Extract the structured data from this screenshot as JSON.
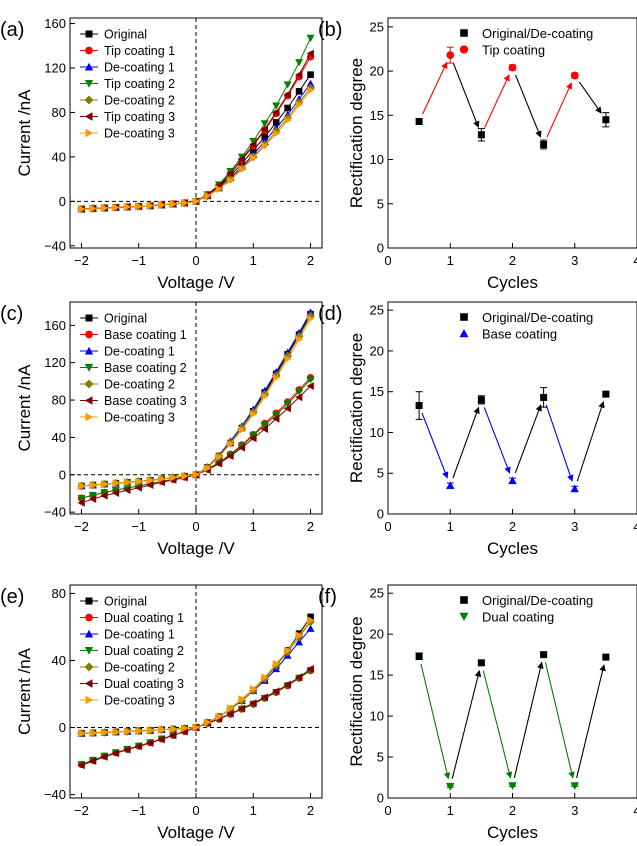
{
  "chart_data": [
    {
      "panel": "(a)",
      "type": "line",
      "xlabel": "Voltage /V",
      "ylabel": "Current /nA",
      "xlim": [
        -2.2,
        2.2
      ],
      "ylim": [
        -42,
        165
      ],
      "xticks": [
        -2,
        -1,
        0,
        1,
        2
      ],
      "yticks": [
        -40,
        0,
        40,
        80,
        120,
        160
      ],
      "x": [
        -2.0,
        -1.8,
        -1.6,
        -1.4,
        -1.2,
        -1.0,
        -0.8,
        -0.6,
        -0.4,
        -0.2,
        0.0,
        0.2,
        0.4,
        0.6,
        0.8,
        1.0,
        1.2,
        1.4,
        1.6,
        1.8,
        2.0
      ],
      "legend_position": "top-left",
      "series": [
        {
          "name": "Original",
          "color": "#000000",
          "marker": "square",
          "values": [
            -7,
            -6.5,
            -6,
            -5.5,
            -5,
            -4.5,
            -4,
            -3.2,
            -2.4,
            -1.4,
            0,
            5,
            13,
            23,
            34,
            46,
            58,
            71,
            84,
            99,
            114
          ]
        },
        {
          "name": "Tip coating 1",
          "color": "#ff0000",
          "marker": "circle",
          "values": [
            -7,
            -6.5,
            -6,
            -5.5,
            -5,
            -4.5,
            -4,
            -3.2,
            -2.4,
            -1.4,
            0,
            6,
            14,
            25,
            37,
            50,
            64,
            79,
            95,
            112,
            130
          ]
        },
        {
          "name": "De-coating 1",
          "color": "#0000ff",
          "marker": "triangle-up",
          "values": [
            -7,
            -6.5,
            -6,
            -5.5,
            -5,
            -4.5,
            -4,
            -3.2,
            -2.4,
            -1.4,
            0,
            5,
            12,
            21,
            31,
            42,
            54,
            66,
            78,
            92,
            106
          ]
        },
        {
          "name": "Tip coating 2",
          "color": "#008000",
          "marker": "triangle-down",
          "values": [
            -7,
            -6.5,
            -6,
            -5.5,
            -5,
            -4.5,
            -4,
            -3.2,
            -2.4,
            -1.4,
            0,
            6,
            15,
            27,
            40,
            54,
            70,
            86,
            105,
            125,
            147
          ]
        },
        {
          "name": "De-coating 2",
          "color": "#808000",
          "marker": "diamond",
          "values": [
            -7,
            -6.5,
            -6,
            -5.5,
            -5,
            -4.5,
            -4,
            -3.2,
            -2.4,
            -1.4,
            0,
            5,
            12,
            20,
            30,
            40,
            51,
            63,
            75,
            89,
            102
          ]
        },
        {
          "name": "Tip coating 3",
          "color": "#800000",
          "marker": "triangle-left",
          "values": [
            -7,
            -6.5,
            -6,
            -5.5,
            -5,
            -4.5,
            -4,
            -3.2,
            -2.4,
            -1.4,
            0,
            6,
            14,
            25,
            38,
            51,
            65,
            80,
            96,
            114,
            133
          ]
        },
        {
          "name": "De-coating 3",
          "color": "#ff9900",
          "marker": "triangle-right",
          "values": [
            -7,
            -6.5,
            -6,
            -5.5,
            -5,
            -4.5,
            -4,
            -3.2,
            -2.4,
            -1.4,
            0,
            5,
            11,
            19,
            29,
            39,
            50,
            61,
            73,
            87,
            100
          ]
        }
      ]
    },
    {
      "panel": "(b)",
      "type": "scatter",
      "xlabel": "Cycles",
      "ylabel": "Rectification degree",
      "xlim": [
        0,
        4
      ],
      "ylim": [
        0,
        26
      ],
      "xticks": [
        0,
        1,
        2,
        3,
        4
      ],
      "yticks": [
        0,
        5,
        10,
        15,
        20,
        25
      ],
      "legend_position": "top-right",
      "series": [
        {
          "name": "Original/De-coating",
          "color": "#000000",
          "marker": "square",
          "x": [
            0.5,
            1.5,
            2.5,
            3.5
          ],
          "values": [
            14.3,
            12.8,
            11.7,
            14.5
          ],
          "errors": [
            0,
            0.7,
            0.5,
            0.8
          ]
        },
        {
          "name": "Tip coating",
          "color": "#ff0000",
          "marker": "circle",
          "x": [
            1,
            2,
            3
          ],
          "values": [
            21.8,
            20.4,
            19.5
          ],
          "errors": [
            0.9,
            0.3,
            0.3
          ]
        }
      ],
      "arrows": [
        {
          "from": [
            0.5,
            14.3
          ],
          "to": [
            1,
            21.8
          ],
          "color": "#ff0000"
        },
        {
          "from": [
            1,
            21.8
          ],
          "to": [
            1.5,
            12.8
          ],
          "color": "#000000"
        },
        {
          "from": [
            1.5,
            12.8
          ],
          "to": [
            2,
            20.4
          ],
          "color": "#ff0000"
        },
        {
          "from": [
            2,
            20.4
          ],
          "to": [
            2.5,
            11.7
          ],
          "color": "#000000"
        },
        {
          "from": [
            2.5,
            11.7
          ],
          "to": [
            3,
            19.5
          ],
          "color": "#ff0000"
        },
        {
          "from": [
            3,
            19.5
          ],
          "to": [
            3.5,
            14.5
          ],
          "color": "#000000"
        }
      ]
    },
    {
      "panel": "(c)",
      "type": "line",
      "xlabel": "Voltage /V",
      "ylabel": "Current /nA",
      "xlim": [
        -2.2,
        2.2
      ],
      "ylim": [
        -42,
        185
      ],
      "xticks": [
        -2,
        -1,
        0,
        1,
        2
      ],
      "yticks": [
        -40,
        0,
        40,
        80,
        120,
        160
      ],
      "x": [
        -2.0,
        -1.8,
        -1.6,
        -1.4,
        -1.2,
        -1.0,
        -0.8,
        -0.6,
        -0.4,
        -0.2,
        0.0,
        0.2,
        0.4,
        0.6,
        0.8,
        1.0,
        1.2,
        1.4,
        1.6,
        1.8,
        2.0
      ],
      "legend_position": "top-left",
      "series": [
        {
          "name": "Original",
          "color": "#000000",
          "marker": "square",
          "values": [
            -12,
            -11,
            -10,
            -9,
            -8,
            -7,
            -6,
            -4.5,
            -3,
            -1.5,
            0,
            8,
            20,
            34,
            50,
            68,
            88,
            108,
            129,
            150,
            172
          ]
        },
        {
          "name": "Base coating 1",
          "color": "#ff0000",
          "marker": "circle",
          "values": [
            -25,
            -22,
            -19,
            -16.5,
            -14,
            -12,
            -9.5,
            -7,
            -5,
            -2.5,
            0,
            6,
            13,
            22,
            32,
            43,
            55,
            66,
            78,
            91,
            104
          ]
        },
        {
          "name": "De-coating 1",
          "color": "#0000ff",
          "marker": "triangle-up",
          "values": [
            -12,
            -11,
            -10,
            -9,
            -8,
            -7,
            -6,
            -4.5,
            -3,
            -1.5,
            0,
            8,
            21,
            36,
            52,
            70,
            90,
            110,
            131,
            152,
            174
          ]
        },
        {
          "name": "Base coating 2",
          "color": "#008000",
          "marker": "triangle-down",
          "values": [
            -25,
            -22,
            -19,
            -16.5,
            -14,
            -12,
            -9.5,
            -7,
            -5,
            -2.5,
            0,
            6,
            13,
            21,
            31,
            42,
            53,
            64,
            76,
            89,
            102
          ]
        },
        {
          "name": "De-coating 2",
          "color": "#808000",
          "marker": "diamond",
          "values": [
            -12,
            -11,
            -10,
            -9,
            -8,
            -7,
            -6,
            -4.5,
            -3,
            -1.5,
            0,
            8,
            20,
            34,
            50,
            67,
            86,
            106,
            127,
            148,
            170
          ]
        },
        {
          "name": "Base coating 3",
          "color": "#800000",
          "marker": "triangle-left",
          "values": [
            -30,
            -26,
            -22.5,
            -19.5,
            -16.5,
            -14,
            -11,
            -8,
            -5.5,
            -3,
            0,
            5,
            12,
            20,
            29,
            39,
            49,
            60,
            71,
            83,
            95
          ]
        },
        {
          "name": "De-coating 3",
          "color": "#ff9900",
          "marker": "triangle-right",
          "values": [
            -12,
            -11,
            -10,
            -9,
            -8,
            -7,
            -6,
            -4.5,
            -3,
            -1.5,
            0,
            7,
            19,
            33,
            48,
            65,
            84,
            104,
            124,
            145,
            167
          ]
        }
      ]
    },
    {
      "panel": "(d)",
      "type": "scatter",
      "xlabel": "Cycles",
      "ylabel": "Rectification degree",
      "xlim": [
        0,
        4
      ],
      "ylim": [
        0,
        26
      ],
      "xticks": [
        0,
        1,
        2,
        3,
        4
      ],
      "yticks": [
        0,
        5,
        10,
        15,
        20,
        25
      ],
      "legend_position": "top-right",
      "series": [
        {
          "name": "Original/De-coating",
          "color": "#000000",
          "marker": "square",
          "x": [
            0.5,
            1.5,
            2.5,
            3.5
          ],
          "values": [
            13.3,
            14.0,
            14.3,
            14.7
          ],
          "errors": [
            1.7,
            0.5,
            1.2,
            0.2
          ]
        },
        {
          "name": "Base coating",
          "color": "#0000ff",
          "marker": "triangle-up",
          "x": [
            1,
            2,
            3
          ],
          "values": [
            3.5,
            4.1,
            3.1
          ],
          "errors": [
            0.3,
            0.3,
            0.3
          ]
        }
      ],
      "arrows": [
        {
          "from": [
            0.5,
            13.3
          ],
          "to": [
            1,
            3.5
          ],
          "color": "#0000ff"
        },
        {
          "from": [
            1,
            3.5
          ],
          "to": [
            1.5,
            14.0
          ],
          "color": "#000000"
        },
        {
          "from": [
            1.5,
            14.0
          ],
          "to": [
            2,
            4.1
          ],
          "color": "#0000ff"
        },
        {
          "from": [
            2,
            4.1
          ],
          "to": [
            2.5,
            14.3
          ],
          "color": "#000000"
        },
        {
          "from": [
            2.5,
            14.3
          ],
          "to": [
            3,
            3.1
          ],
          "color": "#0000ff"
        },
        {
          "from": [
            3,
            3.1
          ],
          "to": [
            3.5,
            14.7
          ],
          "color": "#000000"
        }
      ]
    },
    {
      "panel": "(e)",
      "type": "line",
      "xlabel": "Voltage /V",
      "ylabel": "Current /nA",
      "xlim": [
        -2.2,
        2.2
      ],
      "ylim": [
        -42,
        85
      ],
      "xticks": [
        -2,
        -1,
        0,
        1,
        2
      ],
      "yticks": [
        -40,
        0,
        40,
        80
      ],
      "x": [
        -2.0,
        -1.8,
        -1.6,
        -1.4,
        -1.2,
        -1.0,
        -0.8,
        -0.6,
        -0.4,
        -0.2,
        0.0,
        0.2,
        0.4,
        0.6,
        0.8,
        1.0,
        1.2,
        1.4,
        1.6,
        1.8,
        2.0
      ],
      "legend_position": "top-left",
      "series": [
        {
          "name": "Original",
          "color": "#000000",
          "marker": "square",
          "values": [
            -3.5,
            -3.2,
            -2.9,
            -2.6,
            -2.3,
            -2,
            -1.7,
            -1.3,
            -0.9,
            -0.5,
            0,
            3,
            6.5,
            11,
            16,
            22,
            29,
            37,
            46,
            56,
            66
          ]
        },
        {
          "name": "Dual coating 1",
          "color": "#ff0000",
          "marker": "circle",
          "values": [
            -22,
            -19.5,
            -17,
            -15,
            -13,
            -11,
            -9,
            -6.8,
            -4.6,
            -2.3,
            0,
            2.5,
            5,
            8,
            11,
            14,
            17.5,
            21,
            25,
            29.5,
            34
          ]
        },
        {
          "name": "De-coating 1",
          "color": "#0000ff",
          "marker": "triangle-up",
          "values": [
            -3.5,
            -3.2,
            -2.9,
            -2.6,
            -2.3,
            -2,
            -1.7,
            -1.3,
            -0.9,
            -0.5,
            0,
            3,
            6.5,
            11,
            16,
            22,
            28,
            35,
            43,
            51,
            59
          ]
        },
        {
          "name": "Dual coating 2",
          "color": "#008000",
          "marker": "triangle-down",
          "values": [
            -22,
            -19.5,
            -17,
            -15,
            -13,
            -11,
            -9,
            -6.8,
            -4.6,
            -2.3,
            0,
            2.5,
            5,
            8,
            11,
            14,
            17.5,
            21,
            25,
            29.5,
            34
          ]
        },
        {
          "name": "De-coating 2",
          "color": "#808000",
          "marker": "diamond",
          "values": [
            -3.5,
            -3.2,
            -2.9,
            -2.6,
            -2.3,
            -2,
            -1.7,
            -1.3,
            -0.9,
            -0.5,
            0,
            3,
            6.5,
            11,
            16,
            22,
            29,
            37,
            45,
            54,
            63
          ]
        },
        {
          "name": "Dual coating 3",
          "color": "#800000",
          "marker": "triangle-left",
          "values": [
            -22.5,
            -20,
            -17.5,
            -15.3,
            -13.2,
            -11.2,
            -9.2,
            -7,
            -4.7,
            -2.4,
            0,
            2.6,
            5.2,
            8.2,
            11.3,
            14.5,
            18,
            21.6,
            25.6,
            30,
            35
          ]
        },
        {
          "name": "De-coating 3",
          "color": "#ff9900",
          "marker": "triangle-right",
          "values": [
            -3.5,
            -3.2,
            -2.9,
            -2.6,
            -2.3,
            -2,
            -1.7,
            -1.3,
            -0.9,
            -0.5,
            0,
            3,
            6.5,
            11.5,
            17,
            23,
            30,
            38,
            46,
            55,
            64
          ]
        }
      ]
    },
    {
      "panel": "(f)",
      "type": "scatter",
      "xlabel": "Cycles",
      "ylabel": "Rectification degree",
      "xlim": [
        0,
        4
      ],
      "ylim": [
        0,
        26
      ],
      "xticks": [
        0,
        1,
        2,
        3,
        4
      ],
      "yticks": [
        0,
        5,
        10,
        15,
        20,
        25
      ],
      "legend_position": "top-right",
      "series": [
        {
          "name": "Original/De-coating",
          "color": "#000000",
          "marker": "square",
          "x": [
            0.5,
            1.5,
            2.5,
            3.5
          ],
          "values": [
            17.3,
            16.5,
            17.5,
            17.2
          ],
          "errors": [
            0.4,
            0.2,
            0.2,
            0.1
          ]
        },
        {
          "name": "Dual coating",
          "color": "#008000",
          "marker": "triangle-down",
          "x": [
            1,
            2,
            3
          ],
          "values": [
            1.4,
            1.5,
            1.5
          ],
          "errors": [
            0.1,
            0.1,
            0.1
          ]
        }
      ],
      "arrows": [
        {
          "from": [
            0.5,
            17.3
          ],
          "to": [
            1,
            1.4
          ],
          "color": "#008000"
        },
        {
          "from": [
            1,
            1.4
          ],
          "to": [
            1.5,
            16.5
          ],
          "color": "#000000"
        },
        {
          "from": [
            1.5,
            16.5
          ],
          "to": [
            2,
            1.5
          ],
          "color": "#008000"
        },
        {
          "from": [
            2,
            1.5
          ],
          "to": [
            2.5,
            17.5
          ],
          "color": "#000000"
        },
        {
          "from": [
            2.5,
            17.5
          ],
          "to": [
            3,
            1.5
          ],
          "color": "#008000"
        },
        {
          "from": [
            3,
            1.5
          ],
          "to": [
            3.5,
            17.2
          ],
          "color": "#000000"
        }
      ]
    }
  ]
}
